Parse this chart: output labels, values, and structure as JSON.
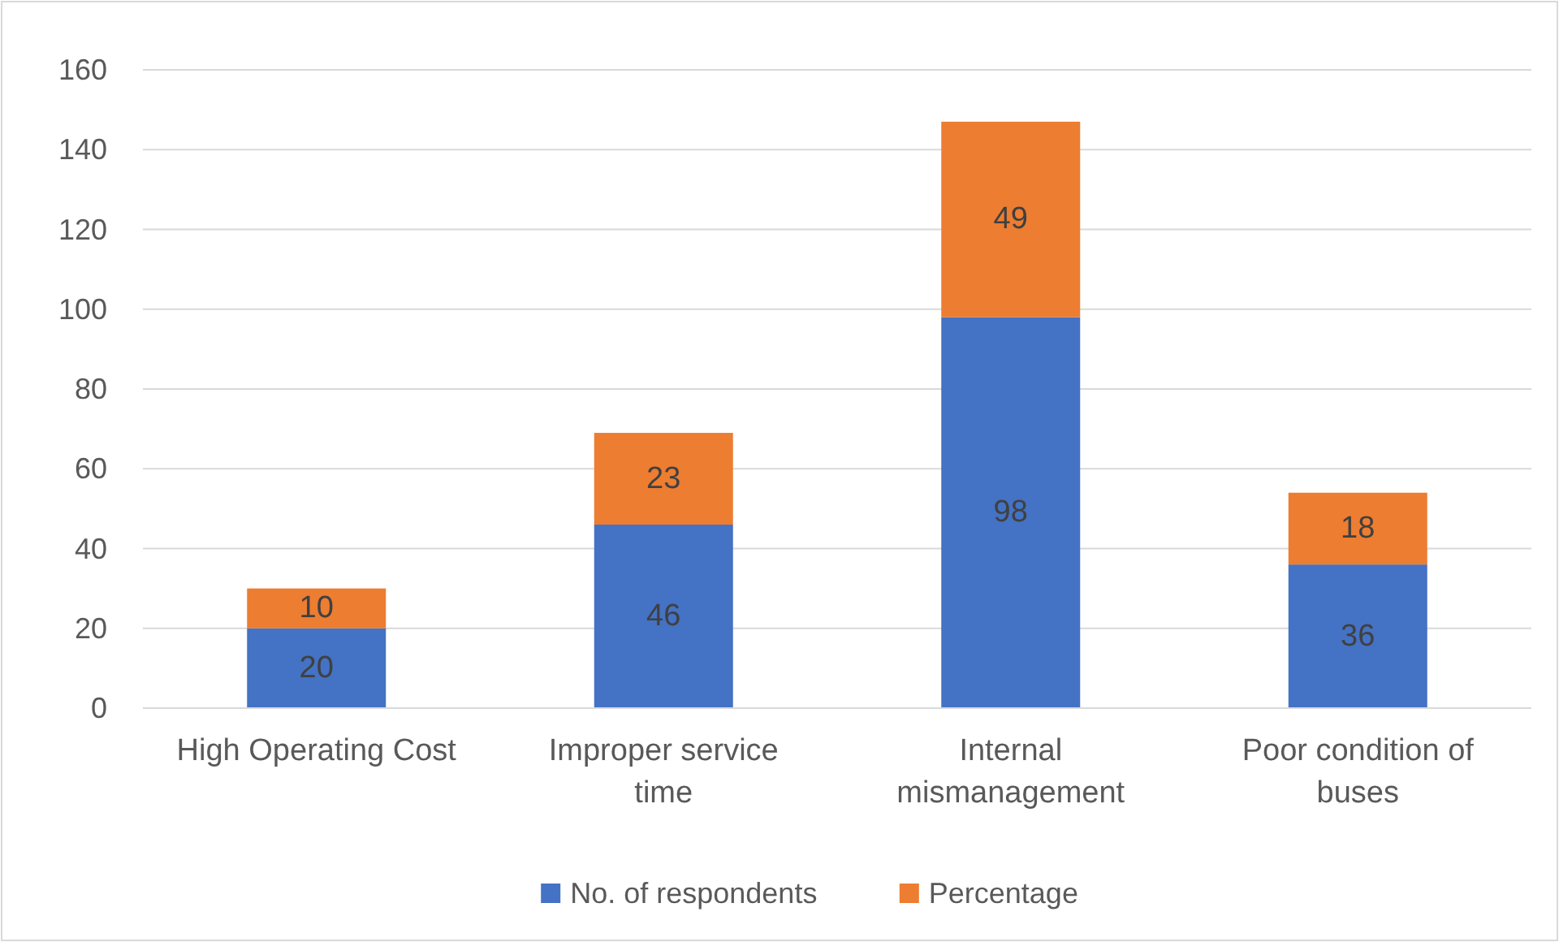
{
  "chart_data": {
    "type": "bar",
    "stacked": true,
    "categories": [
      "High Operating Cost",
      "Improper service time",
      "Internal mismanagement",
      "Poor condition of buses"
    ],
    "series": [
      {
        "name": "No. of respondents",
        "color": "#4472c4",
        "values": [
          20,
          46,
          98,
          36
        ]
      },
      {
        "name": "Percentage",
        "color": "#ed7d31",
        "values": [
          10,
          23,
          49,
          18
        ]
      }
    ],
    "ylim": [
      0,
      160
    ],
    "yticks": [
      0,
      20,
      40,
      60,
      80,
      100,
      120,
      140,
      160
    ],
    "grid": "y",
    "legend": "bottom",
    "data_labels": true
  }
}
